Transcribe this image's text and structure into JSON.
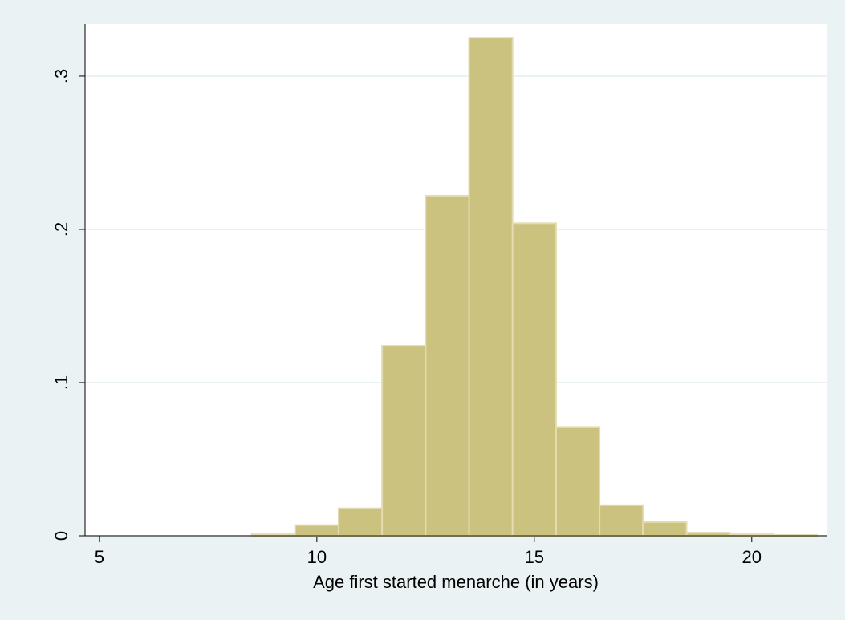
{
  "chart_data": {
    "type": "histogram",
    "x_label": "Age first started menarche (in years)",
    "bins": [
      8.5,
      9.5,
      10.5,
      11.5,
      12.5,
      13.5,
      14.5,
      15.5,
      16.5,
      17.5,
      18.5,
      19.5,
      20.5,
      21.5
    ],
    "values": [
      0.001,
      0.007,
      0.018,
      0.124,
      0.222,
      0.325,
      0.204,
      0.071,
      0.02,
      0.009,
      0.002,
      0.001,
      0.0005
    ],
    "color": "#cbc27f",
    "edge_color": "#e2dcb0",
    "xlim": [
      4.67,
      21.72
    ],
    "xticks": [
      5,
      10,
      15,
      20
    ],
    "ylim": [
      0,
      0.334
    ],
    "yticks": [
      0,
      {
        "value": 0.1,
        "label": ".1"
      },
      {
        "value": 0.2,
        "label": ".2"
      },
      {
        "value": 0.3,
        "label": ".3"
      }
    ],
    "grid": true
  }
}
